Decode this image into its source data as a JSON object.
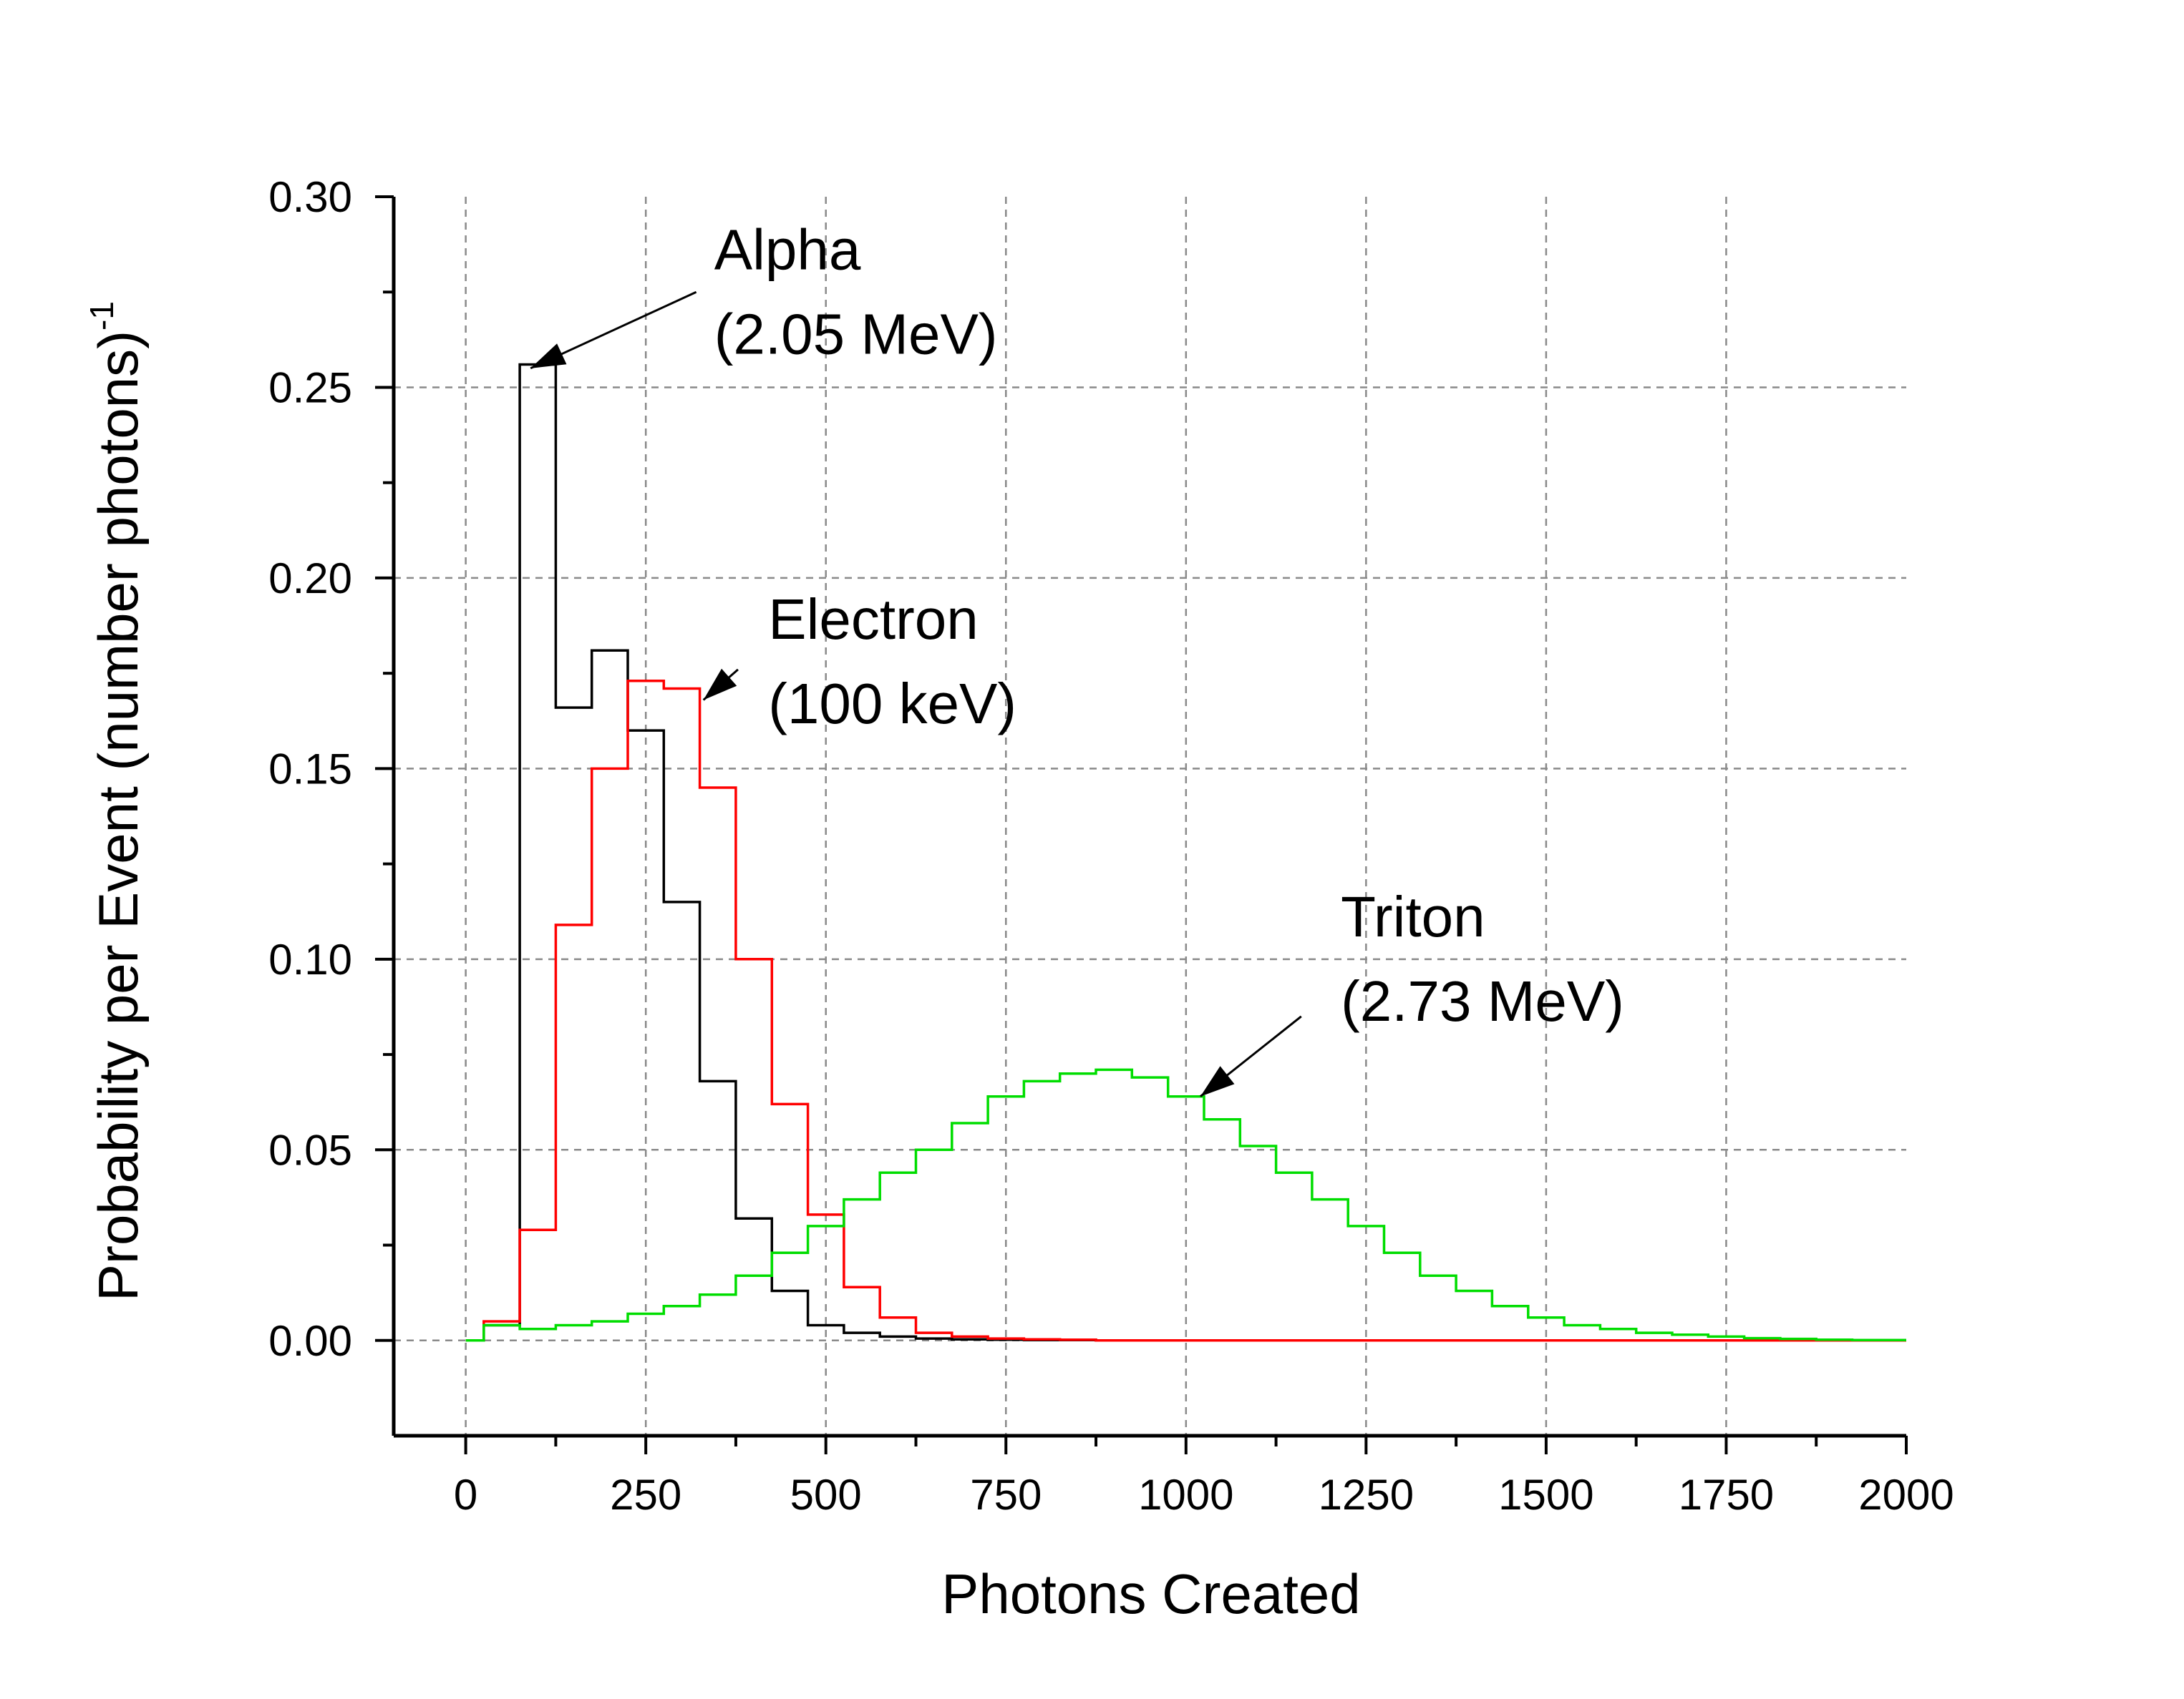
{
  "chart_data": {
    "type": "line",
    "style": "step-histogram",
    "title": "",
    "xlabel": "Photons Created",
    "ylabel": {
      "text": "Probability per Event (number photons)",
      "superscript": "-1"
    },
    "xlim": [
      -100,
      2000
    ],
    "ylim": [
      -0.025,
      0.3
    ],
    "x_ticks": [
      "0",
      "250",
      "500",
      "750",
      "1000",
      "1250",
      "1500",
      "1750",
      "2000"
    ],
    "x_tick_values": [
      0,
      250,
      500,
      750,
      1000,
      1250,
      1500,
      1750,
      2000
    ],
    "y_ticks": [
      "0.00",
      "0.05",
      "0.10",
      "0.15",
      "0.20",
      "0.25",
      "0.30"
    ],
    "y_tick_values": [
      0.0,
      0.05,
      0.1,
      0.15,
      0.2,
      0.25,
      0.3
    ],
    "grid": true,
    "bin_edges": [
      0,
      25,
      75,
      125,
      175,
      225,
      275,
      325,
      375,
      425,
      475,
      525,
      575,
      625,
      675,
      725,
      775,
      825,
      875,
      925,
      975,
      1025,
      1075,
      1125,
      1175,
      1225,
      1275,
      1325,
      1375,
      1425,
      1475,
      1525,
      1575,
      1625,
      1675,
      1725,
      1775,
      1825,
      1875,
      1925,
      1975,
      2000
    ],
    "series": [
      {
        "color": "#000000",
        "values": [
          0.0,
          0.004,
          0.256,
          0.166,
          0.181,
          0.16,
          0.115,
          0.068,
          0.032,
          0.013,
          0.004,
          0.002,
          0.001,
          0.0005,
          0.0003,
          0.0002,
          0.0001,
          0.0001,
          0,
          0,
          0,
          0,
          0,
          0,
          0,
          0,
          0,
          0,
          0,
          0,
          0,
          0,
          0,
          0,
          0,
          0,
          0,
          0,
          0,
          0,
          0
        ]
      },
      {
        "color": "#ff0000",
        "values": [
          0.0,
          0.005,
          0.029,
          0.109,
          0.15,
          0.173,
          0.171,
          0.145,
          0.1,
          0.062,
          0.033,
          0.014,
          0.006,
          0.002,
          0.001,
          0.0005,
          0.0003,
          0.0002,
          0,
          0,
          0,
          0,
          0,
          0,
          0,
          0,
          0,
          0,
          0,
          0,
          0,
          0,
          0,
          0,
          0,
          0,
          0,
          0,
          0,
          0,
          0
        ]
      },
      {
        "color": "#00dd00",
        "values": [
          0.0,
          0.004,
          0.003,
          0.004,
          0.005,
          0.007,
          0.009,
          0.012,
          0.017,
          0.023,
          0.03,
          0.037,
          0.044,
          0.05,
          0.057,
          0.064,
          0.068,
          0.07,
          0.071,
          0.069,
          0.064,
          0.058,
          0.051,
          0.044,
          0.037,
          0.03,
          0.023,
          0.017,
          0.013,
          0.009,
          0.006,
          0.004,
          0.003,
          0.002,
          0.0015,
          0.001,
          0.0006,
          0.0004,
          0.0002,
          0.0001,
          0.0001
        ]
      }
    ],
    "annotations": [
      {
        "lines": [
          "Alpha",
          "(2.05 MeV)"
        ],
        "text_at": {
          "x": 345,
          "y": 0.281
        },
        "arrow_from": {
          "x": 320,
          "y": 0.275
        },
        "arrow_to": {
          "x": 90,
          "y": 0.255
        }
      },
      {
        "lines": [
          "Electron",
          "(100 keV)"
        ],
        "text_at": {
          "x": 420,
          "y": 0.184
        },
        "arrow_from": {
          "x": 378,
          "y": 0.176
        },
        "arrow_to": {
          "x": 330,
          "y": 0.168
        }
      },
      {
        "lines": [
          "Triton",
          "(2.73 MeV)"
        ],
        "text_at": {
          "x": 1215,
          "y": 0.106
        },
        "arrow_from": {
          "x": 1160,
          "y": 0.085
        },
        "arrow_to": {
          "x": 1020,
          "y": 0.064
        }
      }
    ]
  }
}
